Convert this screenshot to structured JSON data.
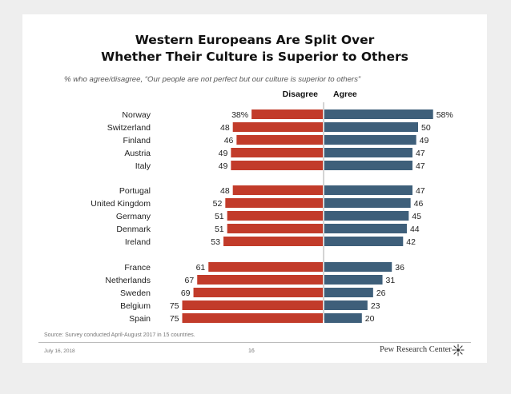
{
  "slide": {
    "title_line1": "Western Europeans Are Split Over",
    "title_line2": "Whether Their Culture is Superior to Others",
    "subtitle": "% who agree/disagree, “Our people are not perfect but our culture is superior to others”",
    "source": "Source: Survey conducted April-August 2017 in 15 countries.",
    "date": "July 16, 2018",
    "page_number": "16",
    "brand": "Pew Research Center"
  },
  "colors": {
    "disagree": "#C23B2A",
    "agree": "#3E5F7A",
    "divider": "#AAAAAA"
  },
  "chart_data": {
    "type": "bar",
    "orientation": "diverging-horizontal",
    "title": "Western Europeans Are Split Over Whether Their Culture is Superior to Others",
    "subtitle": "% who agree/disagree, “Our people are not perfect but our culture is superior to others”",
    "legend": [
      "Disagree",
      "Agree"
    ],
    "categories": [
      "Norway",
      "Switzerland",
      "Finland",
      "Austria",
      "Italy",
      "Portugal",
      "United Kingdom",
      "Germany",
      "Denmark",
      "Ireland",
      "France",
      "Netherlands",
      "Sweden",
      "Belgium",
      "Spain"
    ],
    "groups": [
      [
        0,
        4
      ],
      [
        5,
        9
      ],
      [
        10,
        14
      ]
    ],
    "series": [
      {
        "name": "Disagree",
        "values": [
          38,
          48,
          46,
          49,
          49,
          48,
          52,
          51,
          51,
          53,
          61,
          67,
          69,
          75,
          75
        ],
        "labels": [
          "38%",
          "48",
          "46",
          "49",
          "49",
          "48",
          "52",
          "51",
          "51",
          "53",
          "61",
          "67",
          "69",
          "75",
          "75"
        ]
      },
      {
        "name": "Agree",
        "values": [
          58,
          50,
          49,
          47,
          47,
          47,
          46,
          45,
          44,
          42,
          36,
          31,
          26,
          23,
          20
        ],
        "labels": [
          "58%",
          "50",
          "49",
          "47",
          "47",
          "47",
          "46",
          "45",
          "44",
          "42",
          "36",
          "31",
          "26",
          "23",
          "20"
        ]
      }
    ]
  }
}
